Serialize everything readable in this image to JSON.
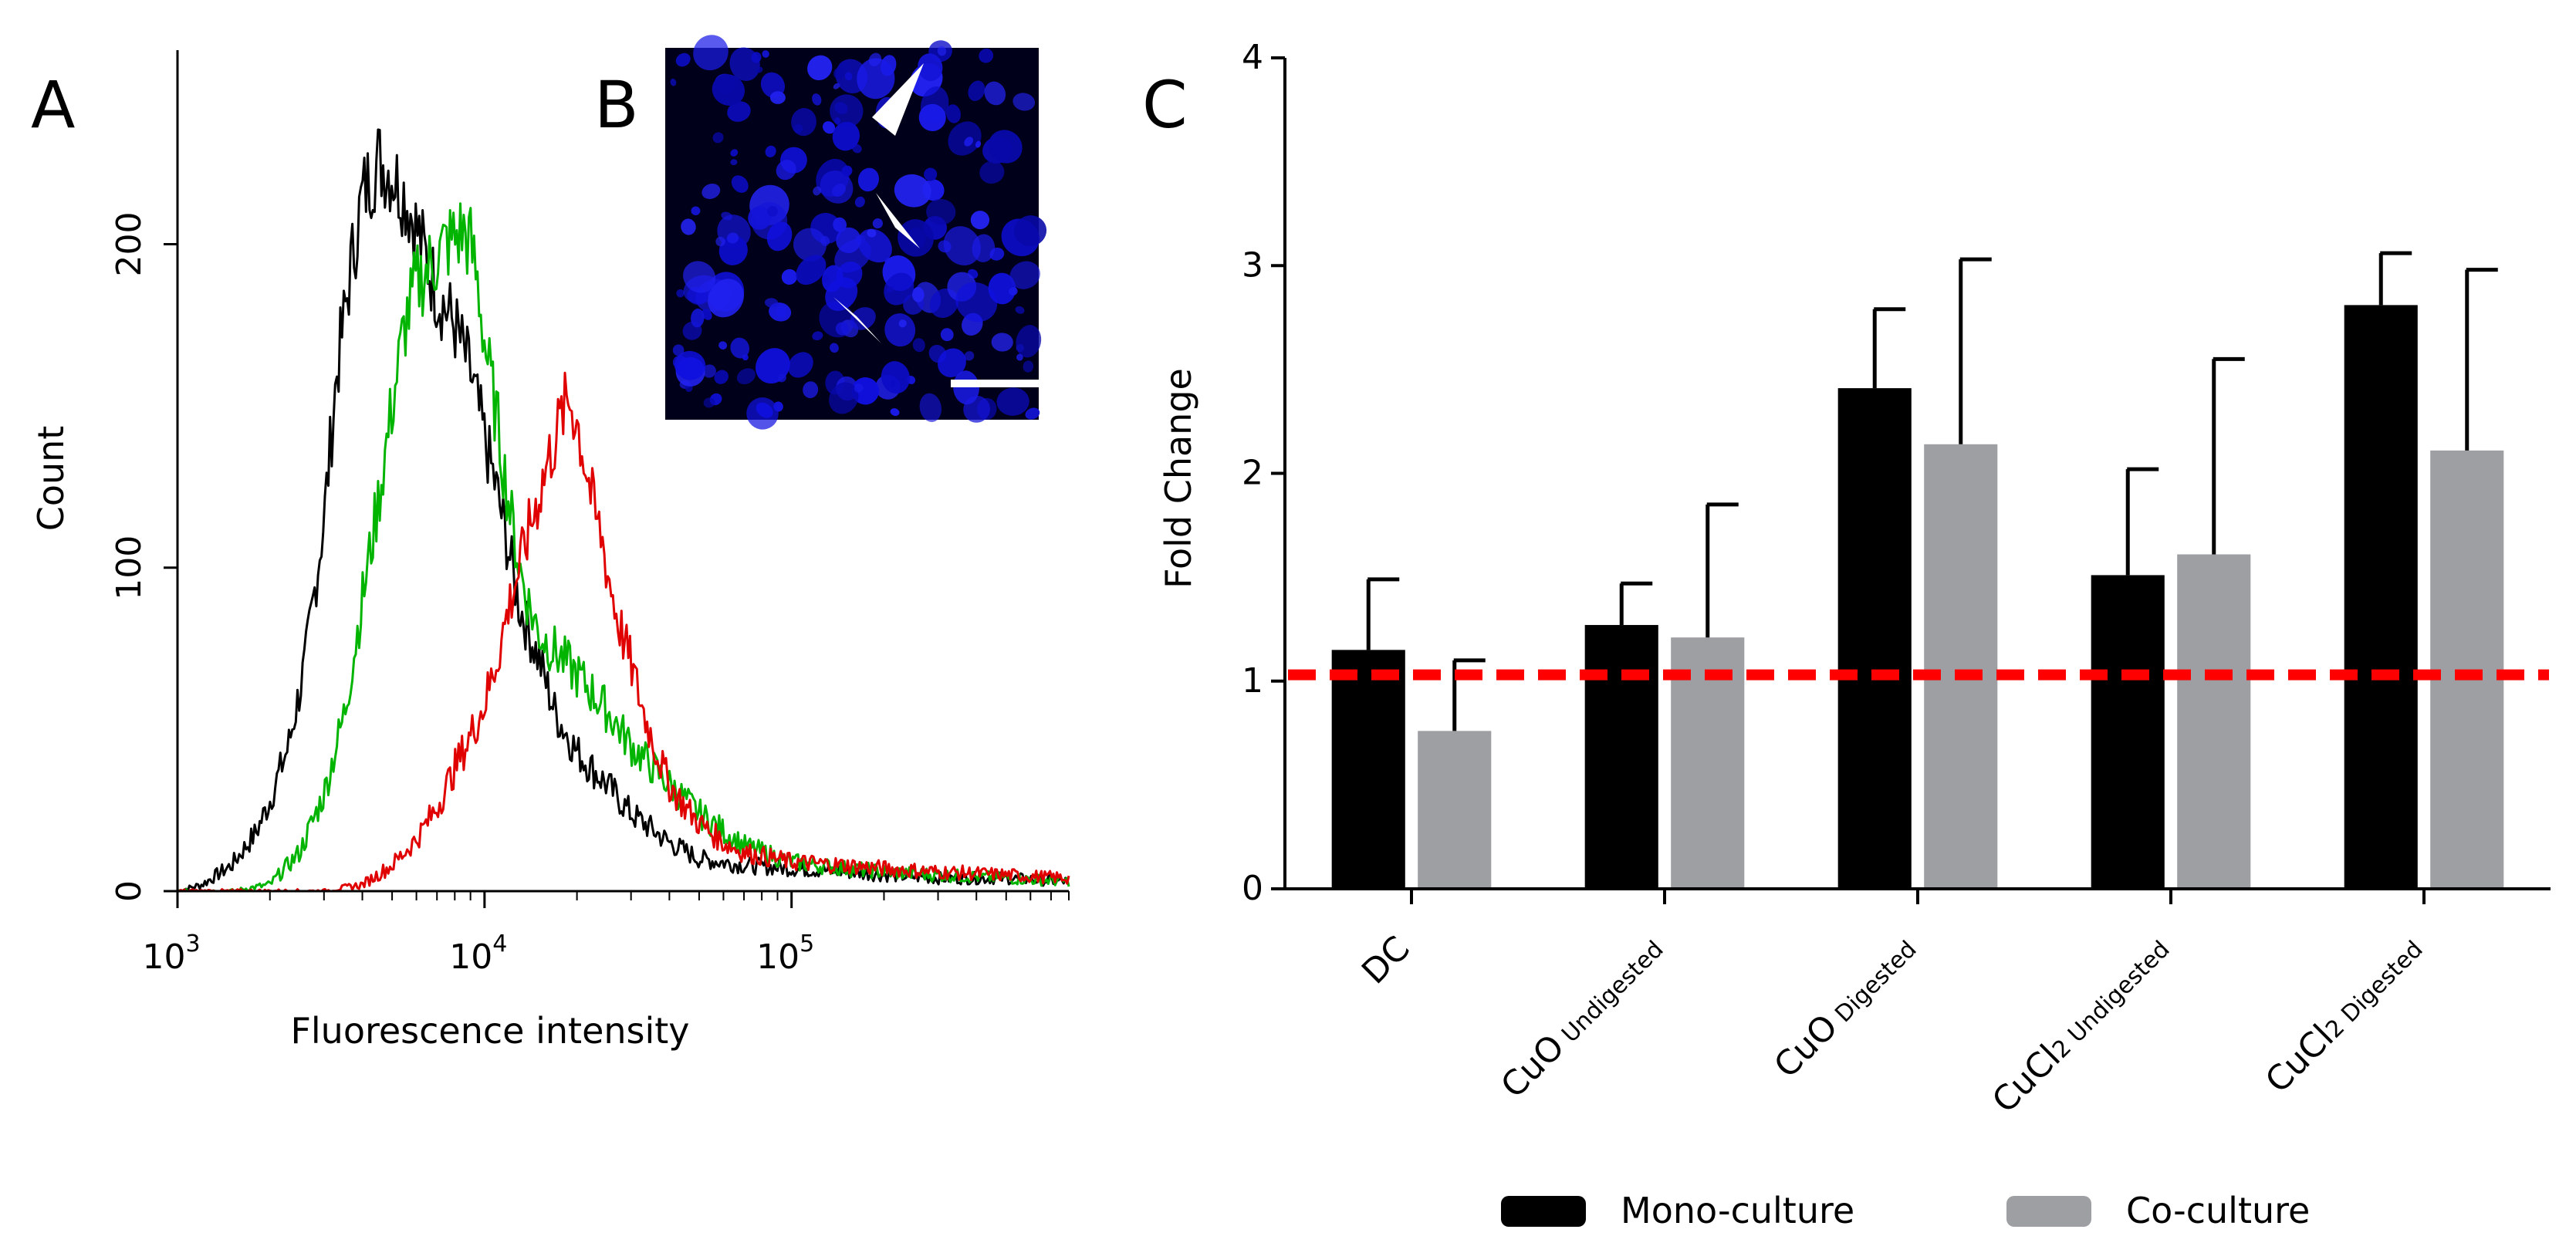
{
  "chart_data": [
    {
      "panel": "A",
      "type": "line",
      "title": "",
      "xlabel": "Fluorescence intensity",
      "ylabel": "Count",
      "xscale": "log",
      "xlim": [
        1000,
        800000
      ],
      "ylim": [
        0,
        260
      ],
      "xticks": [
        {
          "value": 1000,
          "base": "10",
          "exp": "3"
        },
        {
          "value": 10000,
          "base": "10",
          "exp": "4"
        },
        {
          "value": 100000,
          "base": "10",
          "exp": "5"
        }
      ],
      "yticks": [
        "0",
        "100",
        "200"
      ],
      "ytick_values": [
        0,
        100,
        200
      ],
      "series": [
        {
          "name": "black",
          "color": "#000000",
          "x": [
            1000,
            1200,
            1500,
            1800,
            2000,
            2300,
            2600,
            3000,
            3300,
            3700,
            4000,
            4500,
            5000,
            5500,
            6000,
            7000,
            8000,
            9000,
            10000,
            11000,
            12000,
            13000,
            15000,
            17000,
            20000,
            25000,
            30000,
            40000,
            50000,
            70000,
            100000,
            150000,
            200000,
            300000,
            500000,
            800000
          ],
          "y": [
            0,
            2,
            8,
            18,
            28,
            45,
            70,
            115,
            160,
            195,
            215,
            226,
            222,
            215,
            205,
            185,
            175,
            160,
            140,
            123,
            105,
            88,
            72,
            55,
            43,
            33,
            24,
            15,
            10,
            8,
            7,
            6,
            5,
            4,
            4,
            3
          ]
        },
        {
          "name": "green",
          "color": "#00b400",
          "x": [
            1000,
            1500,
            2000,
            2500,
            3000,
            3500,
            4000,
            4500,
            5000,
            5500,
            6000,
            6500,
            7000,
            7500,
            8000,
            8500,
            9000,
            9500,
            10000,
            11000,
            12000,
            13000,
            14000,
            15000,
            17000,
            20000,
            25000,
            30000,
            40000,
            50000,
            70000,
            100000,
            150000,
            200000,
            300000,
            500000,
            800000
          ],
          "y": [
            0,
            0,
            2,
            12,
            30,
            55,
            90,
            120,
            150,
            175,
            188,
            192,
            196,
            200,
            202,
            204,
            200,
            188,
            170,
            145,
            120,
            100,
            88,
            80,
            74,
            67,
            56,
            45,
            33,
            24,
            14,
            9,
            7,
            6,
            5,
            4,
            3
          ]
        },
        {
          "name": "red",
          "color": "#e00000",
          "x": [
            1000,
            3000,
            4000,
            5000,
            6000,
            7000,
            8000,
            9000,
            10000,
            11000,
            12000,
            13000,
            14000,
            15000,
            16000,
            17000,
            18000,
            19000,
            20000,
            21000,
            22000,
            23000,
            24000,
            25000,
            27000,
            30000,
            33000,
            36000,
            40000,
            45000,
            50000,
            60000,
            70000,
            100000,
            150000,
            200000,
            300000,
            500000,
            800000
          ],
          "y": [
            0,
            0,
            2,
            8,
            16,
            26,
            38,
            48,
            58,
            72,
            88,
            100,
            112,
            122,
            132,
            140,
            148,
            152,
            145,
            135,
            125,
            115,
            110,
            100,
            85,
            70,
            55,
            44,
            33,
            26,
            21,
            15,
            12,
            9,
            8,
            7,
            6,
            5,
            4
          ]
        }
      ]
    },
    {
      "panel": "B",
      "type": "micrograph",
      "description_label": "B"
    },
    {
      "panel": "C",
      "type": "bar",
      "title": "",
      "xlabel": "",
      "ylabel": "Fold Change",
      "ylim": [
        0,
        4
      ],
      "yticks": [
        "0",
        "1",
        "2",
        "3",
        "4"
      ],
      "ytick_values": [
        0,
        1,
        2,
        3,
        4
      ],
      "reference_line": 1.03,
      "categories": [
        {
          "main": "DC",
          "sub": ""
        },
        {
          "main": "CuO",
          "sub": "Undigested"
        },
        {
          "main": "CuO",
          "sub": "Digested"
        },
        {
          "main": "CuCl",
          "sub2": "2",
          "sub": "Undigested"
        },
        {
          "main": "CuCl",
          "sub2": "2",
          "sub": "Digested"
        }
      ],
      "series": [
        {
          "name": "Mono-culture",
          "color": "#000000",
          "values": [
            1.15,
            1.27,
            2.41,
            1.51,
            2.81
          ],
          "errors": [
            0.34,
            0.2,
            0.38,
            0.51,
            0.25
          ]
        },
        {
          "name": "Co-culture",
          "color": "#9e9fa3",
          "values": [
            0.76,
            1.21,
            2.14,
            1.61,
            2.11
          ],
          "errors": [
            0.34,
            0.64,
            0.89,
            0.94,
            0.87
          ]
        }
      ],
      "legend": "bottom"
    }
  ],
  "panel_labels": {
    "a": "A",
    "b": "B",
    "c": "C"
  },
  "colors": {
    "reference_line": "#ff0000",
    "micrograph_bg": "#00001a",
    "nuclei": "#1414e6"
  }
}
